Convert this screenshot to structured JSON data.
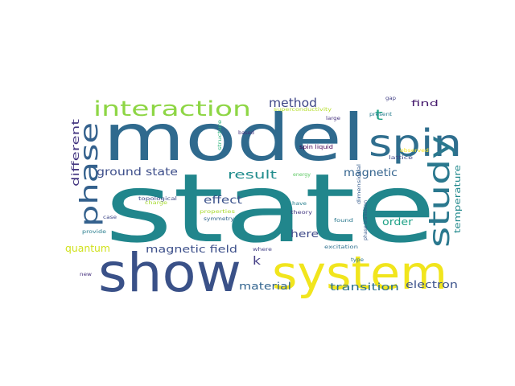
{
  "word_cloud": {
    "background": "#ffffff",
    "words": [
      {
        "text": "state",
        "color": "#21868C"
      },
      {
        "text": "model",
        "color": "#2F6A8E"
      },
      {
        "text": "show",
        "color": "#3A5188"
      },
      {
        "text": "system",
        "color": "#F1E51D"
      },
      {
        "text": "spin",
        "color": "#2F6E8E"
      },
      {
        "text": "study",
        "color": "#2A788E"
      },
      {
        "text": "phase",
        "color": "#34618D"
      },
      {
        "text": "interaction",
        "color": "#8ED645"
      },
      {
        "text": "method",
        "color": "#3F4788"
      },
      {
        "text": "t",
        "color": "#20A386"
      },
      {
        "text": "find",
        "color": "#481D6F"
      },
      {
        "text": "different",
        "color": "#453781"
      },
      {
        "text": "ground state",
        "color": "#3D4E8A"
      },
      {
        "text": "result",
        "color": "#228D8D"
      },
      {
        "text": "magnetic",
        "color": "#33638D"
      },
      {
        "text": "temperature",
        "color": "#238A8D"
      },
      {
        "text": "effect",
        "color": "#3B528B"
      },
      {
        "text": "quantum",
        "color": "#D0E11C"
      },
      {
        "text": "magnetic field",
        "color": "#3C4F8A"
      },
      {
        "text": "k",
        "color": "#433E85"
      },
      {
        "text": "here",
        "color": "#3E4A89"
      },
      {
        "text": "order",
        "color": "#1FA287"
      },
      {
        "text": "material",
        "color": "#32648E"
      },
      {
        "text": "transition",
        "color": "#2C718E"
      },
      {
        "text": "electron",
        "color": "#3B528B"
      },
      {
        "text": "energy",
        "color": "#5CC863"
      },
      {
        "text": "spin liquid",
        "color": "#440154"
      },
      {
        "text": "based",
        "color": "#46337E"
      },
      {
        "text": "large",
        "color": "#46327E"
      },
      {
        "text": "present",
        "color": "#287C8E"
      },
      {
        "text": "gap",
        "color": "#423F85"
      },
      {
        "text": "superconductivity",
        "color": "#B5DE2B"
      },
      {
        "text": "structure",
        "color": "#2FB47C"
      },
      {
        "text": "observed",
        "color": "#FDE725"
      },
      {
        "text": "lattice",
        "color": "#3E4989"
      },
      {
        "text": "topological",
        "color": "#3E4A89"
      },
      {
        "text": "charge",
        "color": "#A8DB34"
      },
      {
        "text": "properties",
        "color": "#AADC32"
      },
      {
        "text": "symmetry",
        "color": "#31668E"
      },
      {
        "text": "theory",
        "color": "#443A83"
      },
      {
        "text": "have",
        "color": "#277F8E"
      },
      {
        "text": "dimensional",
        "color": "#365C8D"
      },
      {
        "text": "phase transition",
        "color": "#38598C"
      },
      {
        "text": "found",
        "color": "#2A788E"
      },
      {
        "text": "case",
        "color": "#3F4889"
      },
      {
        "text": "provide",
        "color": "#287D8E"
      },
      {
        "text": "where",
        "color": "#424086"
      },
      {
        "text": "excitation",
        "color": "#2D708E"
      },
      {
        "text": "type",
        "color": "#2A768E"
      },
      {
        "text": "new",
        "color": "#46317E"
      }
    ]
  }
}
